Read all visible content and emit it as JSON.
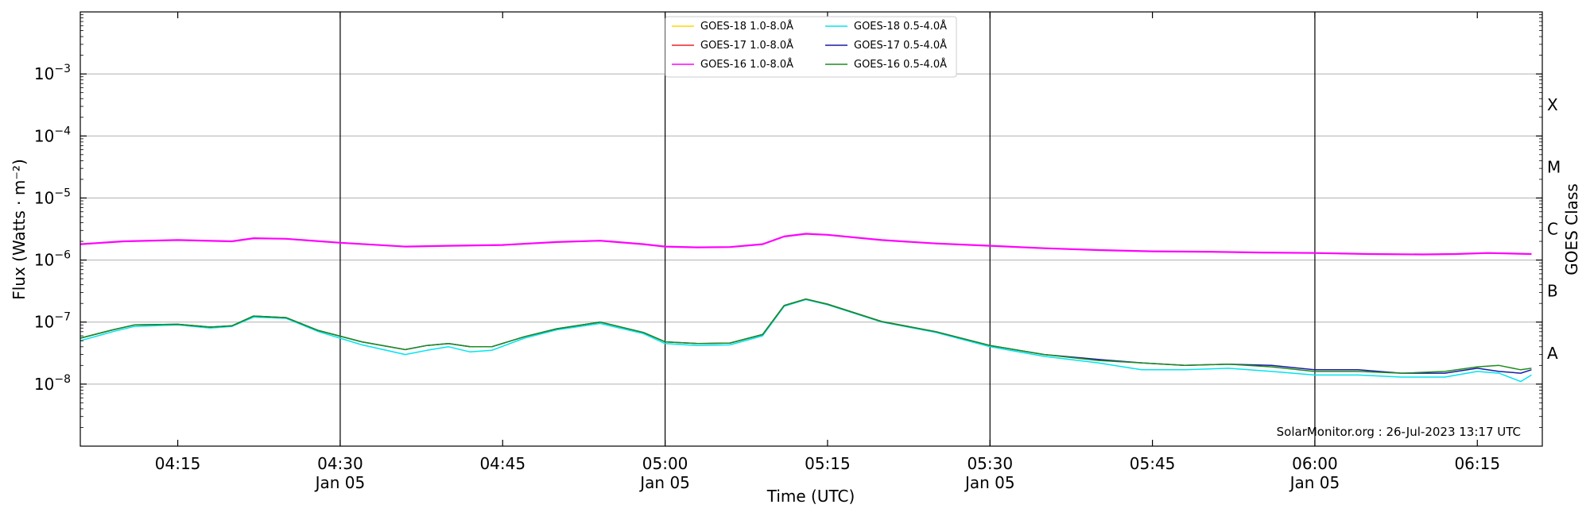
{
  "chart_data": {
    "type": "line",
    "xlabel": "Time (UTC)",
    "ylabel": "Flux (Watts · m⁻²)",
    "y2label": "GOES Class",
    "yscale": "log",
    "xlim": [
      "04:06",
      "06:21"
    ],
    "ylim": [
      1e-09,
      0.01
    ],
    "grid": "horizontal",
    "legend_position": "top-center",
    "watermark": "SolarMonitor.org : 26-Jul-2023 13:17 UTC",
    "x_ticks": [
      {
        "time": "04:15",
        "label": "04:15",
        "date": ""
      },
      {
        "time": "04:30",
        "label": "04:30",
        "date": "Jan 05"
      },
      {
        "time": "04:45",
        "label": "04:45",
        "date": ""
      },
      {
        "time": "05:00",
        "label": "05:00",
        "date": "Jan 05"
      },
      {
        "time": "05:15",
        "label": "05:15",
        "date": ""
      },
      {
        "time": "05:30",
        "label": "05:30",
        "date": "Jan 05"
      },
      {
        "time": "05:45",
        "label": "05:45",
        "date": ""
      },
      {
        "time": "06:00",
        "label": "06:00",
        "date": "Jan 05"
      },
      {
        "time": "06:15",
        "label": "06:15",
        "date": ""
      }
    ],
    "vertical_lines": [
      "04:30",
      "05:00",
      "05:30",
      "06:00"
    ],
    "y_ticks": [
      {
        "value": 1e-08,
        "base": "10",
        "exp": "−8"
      },
      {
        "value": 1e-07,
        "base": "10",
        "exp": "−7"
      },
      {
        "value": 1e-06,
        "base": "10",
        "exp": "−6"
      },
      {
        "value": 1e-05,
        "base": "10",
        "exp": "−5"
      },
      {
        "value": 0.0001,
        "base": "10",
        "exp": "−4"
      },
      {
        "value": 0.001,
        "base": "10",
        "exp": "−3"
      }
    ],
    "goes_classes": [
      {
        "label": "A",
        "value": 3.16e-08
      },
      {
        "label": "B",
        "value": 3.16e-07
      },
      {
        "label": "C",
        "value": 3.16e-06
      },
      {
        "label": "M",
        "value": 3.16e-05
      },
      {
        "label": "X",
        "value": 0.000316
      }
    ],
    "series": [
      {
        "name": "GOES-18 1.0-8.0Å",
        "color": "#ffd700",
        "x": [],
        "y": []
      },
      {
        "name": "GOES-17 1.0-8.0Å",
        "color": "#e8262a",
        "x": [
          "04:06",
          "04:10",
          "04:15",
          "04:20",
          "04:22",
          "04:25",
          "04:30",
          "04:36",
          "04:40",
          "04:45",
          "04:50",
          "04:54",
          "04:58",
          "05:00",
          "05:03",
          "05:06",
          "05:09",
          "05:11",
          "05:13",
          "05:15",
          "05:20",
          "05:25",
          "05:30",
          "05:35",
          "05:40",
          "05:45",
          "05:50",
          "05:55",
          "06:00",
          "06:05",
          "06:10",
          "06:13",
          "06:16",
          "06:20"
        ],
        "y": [
          1.8e-06,
          2e-06,
          2.1e-06,
          2e-06,
          2.25e-06,
          2.2e-06,
          1.9e-06,
          1.65e-06,
          1.7e-06,
          1.75e-06,
          1.95e-06,
          2.05e-06,
          1.8e-06,
          1.65e-06,
          1.6e-06,
          1.62e-06,
          1.8e-06,
          2.4e-06,
          2.65e-06,
          2.55e-06,
          2.1e-06,
          1.85e-06,
          1.7e-06,
          1.55e-06,
          1.45e-06,
          1.38e-06,
          1.36e-06,
          1.32e-06,
          1.3e-06,
          1.25e-06,
          1.23e-06,
          1.25e-06,
          1.3e-06,
          1.25e-06
        ]
      },
      {
        "name": "GOES-16 1.0-8.0Å",
        "color": "#ff00ff",
        "x": [
          "04:06",
          "04:10",
          "04:15",
          "04:20",
          "04:22",
          "04:25",
          "04:30",
          "04:36",
          "04:40",
          "04:45",
          "04:50",
          "04:54",
          "04:58",
          "05:00",
          "05:03",
          "05:06",
          "05:09",
          "05:11",
          "05:13",
          "05:15",
          "05:20",
          "05:25",
          "05:30",
          "05:35",
          "05:40",
          "05:45",
          "05:50",
          "05:55",
          "06:00",
          "06:05",
          "06:10",
          "06:13",
          "06:16",
          "06:20"
        ],
        "y": [
          1.8e-06,
          2e-06,
          2.1e-06,
          2e-06,
          2.25e-06,
          2.2e-06,
          1.9e-06,
          1.65e-06,
          1.7e-06,
          1.75e-06,
          1.95e-06,
          2.05e-06,
          1.8e-06,
          1.65e-06,
          1.6e-06,
          1.62e-06,
          1.8e-06,
          2.4e-06,
          2.65e-06,
          2.55e-06,
          2.1e-06,
          1.85e-06,
          1.7e-06,
          1.55e-06,
          1.45e-06,
          1.38e-06,
          1.36e-06,
          1.32e-06,
          1.3e-06,
          1.25e-06,
          1.23e-06,
          1.25e-06,
          1.3e-06,
          1.25e-06
        ]
      },
      {
        "name": "GOES-18 0.5-4.0Å",
        "color": "#00e5ee",
        "x": [
          "04:06",
          "04:09",
          "04:11",
          "04:15",
          "04:18",
          "04:20",
          "04:22",
          "04:25",
          "04:28",
          "04:32",
          "04:36",
          "04:38",
          "04:40",
          "04:42",
          "04:44",
          "04:47",
          "04:50",
          "04:54",
          "04:58",
          "05:00",
          "05:03",
          "05:06",
          "05:09",
          "05:11",
          "05:13",
          "05:15",
          "05:20",
          "05:25",
          "05:30",
          "05:35",
          "05:40",
          "05:44",
          "05:48",
          "05:52",
          "05:56",
          "06:00",
          "06:04",
          "06:08",
          "06:12",
          "06:15",
          "06:17",
          "06:19",
          "06:20"
        ],
        "y": [
          5e-08,
          7e-08,
          8.5e-08,
          9e-08,
          8e-08,
          8.5e-08,
          1.2e-07,
          1.15e-07,
          7e-08,
          4.3e-08,
          3e-08,
          3.5e-08,
          4e-08,
          3.3e-08,
          3.5e-08,
          5.5e-08,
          7.5e-08,
          9.5e-08,
          6.5e-08,
          4.5e-08,
          4.2e-08,
          4.3e-08,
          6e-08,
          1.8e-07,
          2.3e-07,
          1.9e-07,
          1e-07,
          6.8e-08,
          4e-08,
          2.8e-08,
          2.2e-08,
          1.7e-08,
          1.7e-08,
          1.8e-08,
          1.6e-08,
          1.4e-08,
          1.4e-08,
          1.3e-08,
          1.3e-08,
          1.6e-08,
          1.5e-08,
          1.1e-08,
          1.4e-08
        ]
      },
      {
        "name": "GOES-17 0.5-4.0Å",
        "color": "#1a1aa8",
        "x": [
          "04:06",
          "04:09",
          "04:11",
          "04:15",
          "04:18",
          "04:20",
          "04:22",
          "04:25",
          "04:28",
          "04:32",
          "04:36",
          "04:38",
          "04:40",
          "04:42",
          "04:44",
          "04:47",
          "04:50",
          "04:54",
          "04:58",
          "05:00",
          "05:03",
          "05:06",
          "05:09",
          "05:11",
          "05:13",
          "05:15",
          "05:20",
          "05:25",
          "05:30",
          "05:35",
          "05:40",
          "05:44",
          "05:48",
          "05:52",
          "05:56",
          "06:00",
          "06:04",
          "06:08",
          "06:12",
          "06:15",
          "06:17",
          "06:19",
          "06:20"
        ],
        "y": [
          5.5e-08,
          7.5e-08,
          9e-08,
          9.2e-08,
          8.3e-08,
          8.7e-08,
          1.25e-07,
          1.18e-07,
          7.3e-08,
          4.8e-08,
          3.6e-08,
          4.2e-08,
          4.5e-08,
          4e-08,
          4e-08,
          5.8e-08,
          7.8e-08,
          1e-07,
          6.8e-08,
          4.8e-08,
          4.5e-08,
          4.6e-08,
          6.3e-08,
          1.85e-07,
          2.35e-07,
          1.95e-07,
          1.02e-07,
          7e-08,
          4.2e-08,
          3e-08,
          2.5e-08,
          2.2e-08,
          2e-08,
          2.1e-08,
          2e-08,
          1.7e-08,
          1.7e-08,
          1.5e-08,
          1.5e-08,
          1.8e-08,
          1.6e-08,
          1.5e-08,
          1.7e-08
        ]
      },
      {
        "name": "GOES-16 0.5-4.0Å",
        "color": "#1e8c1e",
        "x": [
          "04:06",
          "04:09",
          "04:11",
          "04:15",
          "04:18",
          "04:20",
          "04:22",
          "04:25",
          "04:28",
          "04:32",
          "04:36",
          "04:38",
          "04:40",
          "04:42",
          "04:44",
          "04:47",
          "04:50",
          "04:54",
          "04:58",
          "05:00",
          "05:03",
          "05:06",
          "05:09",
          "05:11",
          "05:13",
          "05:15",
          "05:20",
          "05:25",
          "05:30",
          "05:35",
          "05:40",
          "05:44",
          "05:48",
          "05:52",
          "05:56",
          "06:00",
          "06:04",
          "06:08",
          "06:12",
          "06:15",
          "06:17",
          "06:19",
          "06:20"
        ],
        "y": [
          5.5e-08,
          7.5e-08,
          9e-08,
          9.2e-08,
          8.3e-08,
          8.7e-08,
          1.25e-07,
          1.18e-07,
          7.3e-08,
          4.8e-08,
          3.6e-08,
          4.2e-08,
          4.5e-08,
          4e-08,
          4e-08,
          5.8e-08,
          7.8e-08,
          1e-07,
          6.8e-08,
          4.8e-08,
          4.5e-08,
          4.6e-08,
          6.3e-08,
          1.85e-07,
          2.35e-07,
          1.95e-07,
          1.02e-07,
          7e-08,
          4.2e-08,
          3e-08,
          2.4e-08,
          2.2e-08,
          2e-08,
          2.1e-08,
          1.9e-08,
          1.6e-08,
          1.6e-08,
          1.5e-08,
          1.6e-08,
          1.9e-08,
          2e-08,
          1.7e-08,
          1.8e-08
        ]
      }
    ]
  }
}
